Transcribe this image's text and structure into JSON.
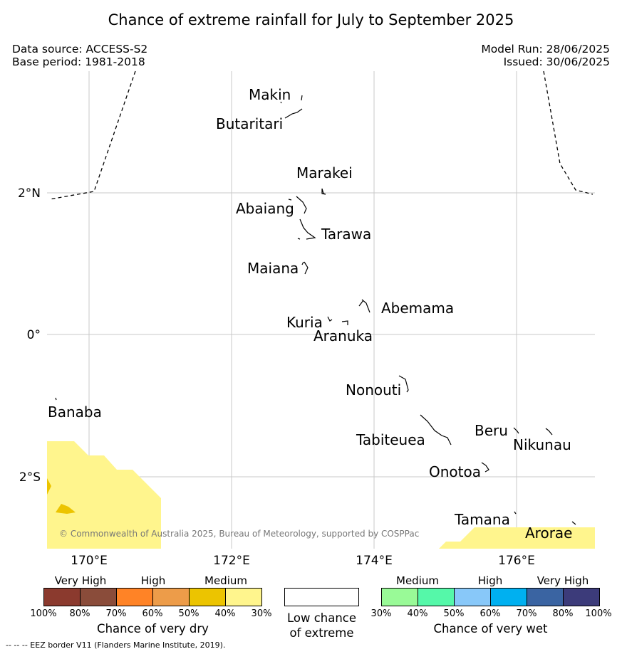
{
  "title": "Chance of extreme rainfall for July to September 2025",
  "data_source": "Data source: ACCESS-S2",
  "base_period": "Base period: 1981-2018",
  "model_run": "Model Run: 28/06/2025",
  "issued": "Issued: 30/06/2025",
  "copyright": "© Commonwealth of Australia 2025, Bureau of Meteorology, supported by COSPPac",
  "footer": "--  --  -- EEZ border V11 (Flanders Marine Institute, 2019).",
  "axes": {
    "lon_labels": [
      "170°E",
      "172°E",
      "174°E",
      "176°E"
    ],
    "lat_labels": [
      "2°N",
      "0°",
      "2°S"
    ]
  },
  "islands": [
    "Makin",
    "Butaritari",
    "Marakei",
    "Abaiang",
    "Tarawa",
    "Maiana",
    "Abemama",
    "Kuria",
    "Aranuka",
    "Nonouti",
    "Banaba",
    "Tabiteuea",
    "Beru",
    "Nikunau",
    "Onotoa",
    "Tamana",
    "Arorae"
  ],
  "legend": {
    "dry": {
      "title": "Chance of very dry",
      "categories": [
        "Very High",
        "High",
        "Medium"
      ],
      "ticks": [
        "100%",
        "80%",
        "70%",
        "60%",
        "50%",
        "40%",
        "30%"
      ],
      "colors": [
        "#8b3a2e",
        "#8a4c3a",
        "#ff8326",
        "#ed9c49",
        "#ecc400",
        "#fff58d"
      ]
    },
    "low": {
      "title_line1": "Low chance",
      "title_line2": "of extreme",
      "color": "#ffffff"
    },
    "wet": {
      "title": "Chance of very wet",
      "categories": [
        "Medium",
        "High",
        "Very High"
      ],
      "ticks": [
        "30%",
        "40%",
        "50%",
        "60%",
        "70%",
        "80%",
        "100%"
      ],
      "colors": [
        "#99fa97",
        "#55f8a9",
        "#88c8f9",
        "#00b0f0",
        "#3a64a2",
        "#3c3b7a"
      ]
    }
  }
}
